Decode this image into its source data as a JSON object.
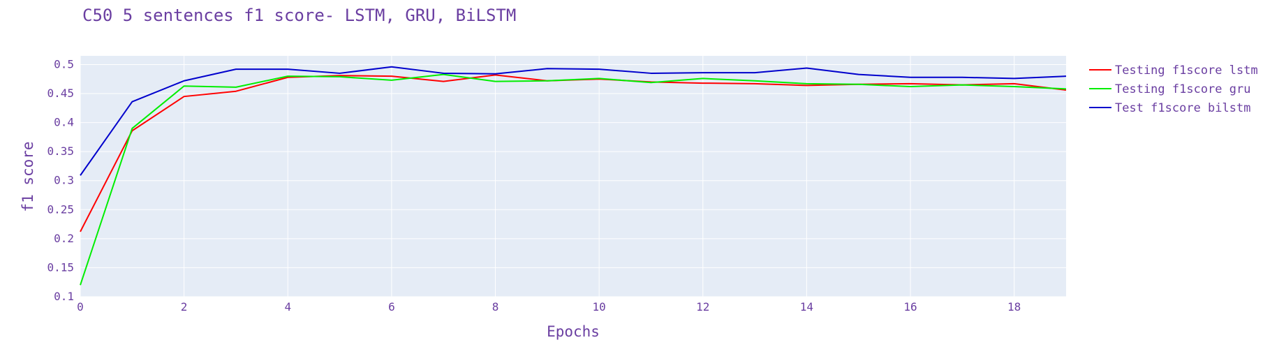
{
  "chart_data": {
    "type": "line",
    "title": "C50 5 sentences f1 score- LSTM, GRU, BiLSTM",
    "xlabel": "Epochs",
    "ylabel": "f1 score",
    "xlim": [
      0,
      19
    ],
    "ylim": [
      0.1,
      0.515
    ],
    "x_ticks": [
      0,
      2,
      4,
      6,
      8,
      10,
      12,
      14,
      16,
      18
    ],
    "x_tick_labels": [
      "0",
      "2",
      "4",
      "6",
      "8",
      "10",
      "12",
      "14",
      "16",
      "18"
    ],
    "y_ticks": [
      0.1,
      0.15,
      0.2,
      0.25,
      0.3,
      0.35,
      0.4,
      0.45,
      0.5
    ],
    "y_tick_labels": [
      "0.1",
      "0.15",
      "0.2",
      "0.25",
      "0.3",
      "0.35",
      "0.4",
      "0.45",
      "0.5"
    ],
    "grid": true,
    "legend_position": "top-right",
    "x": [
      0,
      1,
      2,
      3,
      4,
      5,
      6,
      7,
      8,
      9,
      10,
      11,
      12,
      13,
      14,
      15,
      16,
      17,
      18,
      19
    ],
    "series": [
      {
        "name": "Testing f1score lstm",
        "color": "#ff0000",
        "values": [
          0.212,
          0.386,
          0.445,
          0.454,
          0.478,
          0.481,
          0.48,
          0.471,
          0.482,
          0.472,
          0.475,
          0.47,
          0.468,
          0.467,
          0.464,
          0.466,
          0.467,
          0.465,
          0.467,
          0.456
        ]
      },
      {
        "name": "Testing f1score gru",
        "color": "#00ee00",
        "values": [
          0.12,
          0.39,
          0.463,
          0.461,
          0.48,
          0.479,
          0.473,
          0.483,
          0.471,
          0.472,
          0.476,
          0.469,
          0.476,
          0.472,
          0.467,
          0.466,
          0.462,
          0.465,
          0.462,
          0.458
        ]
      },
      {
        "name": "Test f1score bilstm",
        "color": "#0000cc",
        "values": [
          0.309,
          0.436,
          0.472,
          0.492,
          0.492,
          0.485,
          0.496,
          0.485,
          0.484,
          0.493,
          0.492,
          0.485,
          0.486,
          0.486,
          0.494,
          0.483,
          0.478,
          0.478,
          0.476,
          0.48
        ]
      }
    ]
  },
  "colors": {
    "plot_background": "#e5ecf6",
    "grid": "#ffffff",
    "text": "#6a3ea1"
  }
}
